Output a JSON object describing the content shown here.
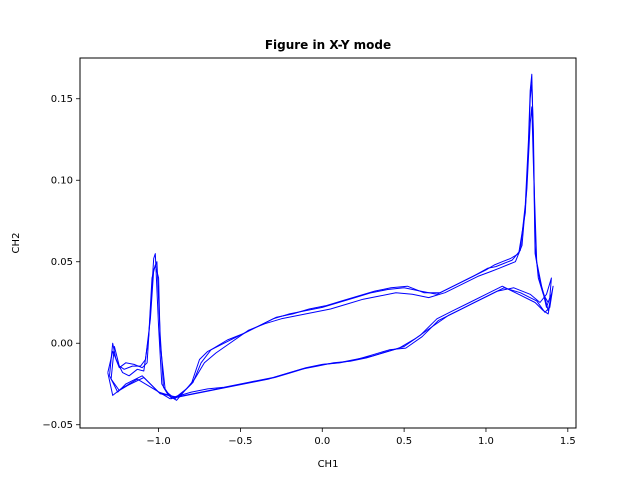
{
  "chart_data": {
    "type": "line",
    "title": "Figure in X-Y mode",
    "xlabel": "CH1",
    "ylabel": "CH2",
    "xlim": [
      -1.48,
      1.55
    ],
    "ylim": [
      -0.052,
      0.175
    ],
    "xticks": [
      -1.0,
      -0.5,
      0.0,
      0.5,
      1.0,
      1.5
    ],
    "xtick_labels": [
      "−1.0",
      "−0.5",
      "0.0",
      "0.5",
      "1.0",
      "1.5"
    ],
    "yticks": [
      -0.05,
      0.0,
      0.05,
      0.1,
      0.15
    ],
    "ytick_labels": [
      "−0.05",
      "0.00",
      "0.05",
      "0.10",
      "0.15"
    ],
    "grid": false,
    "color": "#0000ff",
    "series": [
      {
        "values": [
          [
            -1.3,
            -0.02
          ],
          [
            -1.28,
            0.0
          ],
          [
            -1.26,
            -0.01
          ],
          [
            -1.24,
            -0.015
          ],
          [
            -1.2,
            -0.012
          ],
          [
            -1.15,
            -0.013
          ],
          [
            -1.1,
            -0.015
          ],
          [
            -1.07,
            -0.012
          ],
          [
            -1.05,
            0.02
          ],
          [
            -1.03,
            0.052
          ],
          [
            -1.02,
            0.055
          ],
          [
            -1.0,
            0.01
          ],
          [
            -0.98,
            -0.025
          ],
          [
            -0.95,
            -0.03
          ],
          [
            -0.9,
            -0.034
          ],
          [
            -0.85,
            -0.03
          ],
          [
            -0.8,
            -0.025
          ],
          [
            -0.75,
            -0.01
          ],
          [
            -0.7,
            -0.005
          ],
          [
            -0.6,
            0.0
          ],
          [
            -0.5,
            0.005
          ],
          [
            -0.4,
            0.01
          ],
          [
            -0.3,
            0.015
          ],
          [
            -0.2,
            0.018
          ],
          [
            -0.1,
            0.02
          ],
          [
            0.0,
            0.022
          ],
          [
            0.1,
            0.025
          ],
          [
            0.2,
            0.028
          ],
          [
            0.3,
            0.031
          ],
          [
            0.4,
            0.033
          ],
          [
            0.5,
            0.034
          ],
          [
            0.6,
            0.032
          ],
          [
            0.7,
            0.03
          ],
          [
            0.8,
            0.035
          ],
          [
            0.9,
            0.04
          ],
          [
            1.0,
            0.045
          ],
          [
            1.05,
            0.048
          ],
          [
            1.1,
            0.05
          ],
          [
            1.15,
            0.052
          ],
          [
            1.2,
            0.055
          ],
          [
            1.24,
            0.08
          ],
          [
            1.26,
            0.12
          ],
          [
            1.27,
            0.15
          ],
          [
            1.28,
            0.16
          ],
          [
            1.29,
            0.13
          ],
          [
            1.3,
            0.06
          ],
          [
            1.32,
            0.04
          ],
          [
            1.35,
            0.03
          ],
          [
            1.38,
            0.025
          ],
          [
            1.4,
            0.03
          ],
          [
            1.38,
            0.018
          ],
          [
            1.35,
            0.02
          ],
          [
            1.3,
            0.025
          ],
          [
            1.2,
            0.03
          ],
          [
            1.1,
            0.035
          ],
          [
            1.0,
            0.03
          ],
          [
            0.9,
            0.025
          ],
          [
            0.8,
            0.02
          ],
          [
            0.7,
            0.015
          ],
          [
            0.6,
            0.005
          ],
          [
            0.5,
            -0.002
          ],
          [
            0.4,
            -0.005
          ],
          [
            0.3,
            -0.008
          ],
          [
            0.2,
            -0.01
          ],
          [
            0.1,
            -0.012
          ],
          [
            0.0,
            -0.013
          ],
          [
            -0.1,
            -0.015
          ],
          [
            -0.2,
            -0.018
          ],
          [
            -0.3,
            -0.021
          ],
          [
            -0.4,
            -0.023
          ],
          [
            -0.5,
            -0.025
          ],
          [
            -0.6,
            -0.027
          ],
          [
            -0.7,
            -0.028
          ],
          [
            -0.8,
            -0.03
          ],
          [
            -0.9,
            -0.033
          ],
          [
            -1.0,
            -0.03
          ],
          [
            -1.1,
            -0.02
          ],
          [
            -1.2,
            -0.025
          ],
          [
            -1.25,
            -0.03
          ],
          [
            -1.3,
            -0.02
          ]
        ]
      },
      {
        "values": [
          [
            -1.31,
            -0.018
          ],
          [
            -1.28,
            -0.005
          ],
          [
            -1.25,
            -0.012
          ],
          [
            -1.22,
            -0.018
          ],
          [
            -1.18,
            -0.02
          ],
          [
            -1.13,
            -0.016
          ],
          [
            -1.09,
            -0.017
          ],
          [
            -1.06,
            0.005
          ],
          [
            -1.04,
            0.04
          ],
          [
            -1.02,
            0.048
          ],
          [
            -1.0,
            0.04
          ],
          [
            -0.99,
            0.0
          ],
          [
            -0.96,
            -0.028
          ],
          [
            -0.92,
            -0.034
          ],
          [
            -0.88,
            -0.032
          ],
          [
            -0.83,
            -0.028
          ],
          [
            -0.78,
            -0.022
          ],
          [
            -0.72,
            -0.012
          ],
          [
            -0.65,
            -0.006
          ],
          [
            -0.55,
            0.001
          ],
          [
            -0.45,
            0.008
          ],
          [
            -0.35,
            0.012
          ],
          [
            -0.25,
            0.015
          ],
          [
            -0.15,
            0.017
          ],
          [
            -0.05,
            0.019
          ],
          [
            0.05,
            0.021
          ],
          [
            0.15,
            0.024
          ],
          [
            0.25,
            0.027
          ],
          [
            0.35,
            0.029
          ],
          [
            0.45,
            0.031
          ],
          [
            0.55,
            0.03
          ],
          [
            0.65,
            0.028
          ],
          [
            0.75,
            0.031
          ],
          [
            0.85,
            0.036
          ],
          [
            0.95,
            0.041
          ],
          [
            1.03,
            0.044
          ],
          [
            1.08,
            0.046
          ],
          [
            1.13,
            0.048
          ],
          [
            1.18,
            0.05
          ],
          [
            1.22,
            0.06
          ],
          [
            1.25,
            0.095
          ],
          [
            1.27,
            0.135
          ],
          [
            1.28,
            0.145
          ],
          [
            1.29,
            0.11
          ],
          [
            1.31,
            0.05
          ],
          [
            1.34,
            0.035
          ],
          [
            1.37,
            0.022
          ],
          [
            1.39,
            0.028
          ],
          [
            1.4,
            0.04
          ],
          [
            1.37,
            0.03
          ],
          [
            1.33,
            0.025
          ],
          [
            1.27,
            0.03
          ],
          [
            1.17,
            0.034
          ],
          [
            1.07,
            0.032
          ],
          [
            0.97,
            0.027
          ],
          [
            0.87,
            0.022
          ],
          [
            0.77,
            0.017
          ],
          [
            0.67,
            0.01
          ],
          [
            0.57,
            0.003
          ],
          [
            0.47,
            -0.003
          ],
          [
            0.37,
            -0.006
          ],
          [
            0.27,
            -0.009
          ],
          [
            0.17,
            -0.011
          ],
          [
            0.07,
            -0.012
          ],
          [
            -0.03,
            -0.014
          ],
          [
            -0.13,
            -0.016
          ],
          [
            -0.23,
            -0.019
          ],
          [
            -0.33,
            -0.022
          ],
          [
            -0.43,
            -0.024
          ],
          [
            -0.53,
            -0.026
          ],
          [
            -0.63,
            -0.028
          ],
          [
            -0.73,
            -0.03
          ],
          [
            -0.83,
            -0.032
          ],
          [
            -0.93,
            -0.034
          ],
          [
            -1.03,
            -0.028
          ],
          [
            -1.13,
            -0.022
          ],
          [
            -1.23,
            -0.028
          ],
          [
            -1.28,
            -0.032
          ],
          [
            -1.31,
            -0.018
          ]
        ]
      },
      {
        "values": [
          [
            -1.29,
            -0.022
          ],
          [
            -1.27,
            -0.002
          ],
          [
            -1.24,
            -0.014
          ],
          [
            -1.21,
            -0.016
          ],
          [
            -1.16,
            -0.014
          ],
          [
            -1.11,
            -0.014
          ],
          [
            -1.08,
            -0.01
          ],
          [
            -1.05,
            0.015
          ],
          [
            -1.03,
            0.045
          ],
          [
            -1.01,
            0.05
          ],
          [
            -0.99,
            0.005
          ],
          [
            -0.97,
            -0.027
          ],
          [
            -0.94,
            -0.032
          ],
          [
            -0.89,
            -0.035
          ],
          [
            -0.84,
            -0.029
          ],
          [
            -0.79,
            -0.024
          ],
          [
            -0.74,
            -0.012
          ],
          [
            -0.68,
            -0.004
          ],
          [
            -0.58,
            0.002
          ],
          [
            -0.48,
            0.006
          ],
          [
            -0.38,
            0.011
          ],
          [
            -0.28,
            0.016
          ],
          [
            -0.18,
            0.018
          ],
          [
            -0.08,
            0.021
          ],
          [
            0.02,
            0.023
          ],
          [
            0.12,
            0.026
          ],
          [
            0.22,
            0.029
          ],
          [
            0.32,
            0.032
          ],
          [
            0.42,
            0.034
          ],
          [
            0.52,
            0.035
          ],
          [
            0.62,
            0.031
          ],
          [
            0.72,
            0.031
          ],
          [
            0.82,
            0.036
          ],
          [
            0.92,
            0.041
          ],
          [
            1.01,
            0.046
          ],
          [
            1.06,
            0.047
          ],
          [
            1.11,
            0.049
          ],
          [
            1.16,
            0.051
          ],
          [
            1.21,
            0.057
          ],
          [
            1.24,
            0.085
          ],
          [
            1.26,
            0.125
          ],
          [
            1.27,
            0.155
          ],
          [
            1.28,
            0.165
          ],
          [
            1.29,
            0.12
          ],
          [
            1.3,
            0.055
          ],
          [
            1.33,
            0.038
          ],
          [
            1.36,
            0.028
          ],
          [
            1.38,
            0.02
          ],
          [
            1.41,
            0.035
          ],
          [
            1.39,
            0.022
          ],
          [
            1.36,
            0.019
          ],
          [
            1.31,
            0.026
          ],
          [
            1.21,
            0.031
          ],
          [
            1.11,
            0.034
          ],
          [
            1.01,
            0.029
          ],
          [
            0.91,
            0.024
          ],
          [
            0.81,
            0.019
          ],
          [
            0.71,
            0.014
          ],
          [
            0.61,
            0.004
          ],
          [
            0.51,
            -0.003
          ],
          [
            0.41,
            -0.004
          ],
          [
            0.31,
            -0.007
          ],
          [
            0.21,
            -0.01
          ],
          [
            0.11,
            -0.012
          ],
          [
            0.01,
            -0.013
          ],
          [
            -0.09,
            -0.015
          ],
          [
            -0.19,
            -0.018
          ],
          [
            -0.29,
            -0.021
          ],
          [
            -0.39,
            -0.023
          ],
          [
            -0.49,
            -0.025
          ],
          [
            -0.59,
            -0.027
          ],
          [
            -0.69,
            -0.029
          ],
          [
            -0.79,
            -0.031
          ],
          [
            -0.89,
            -0.033
          ],
          [
            -0.99,
            -0.031
          ],
          [
            -1.09,
            -0.021
          ],
          [
            -1.19,
            -0.026
          ],
          [
            -1.24,
            -0.029
          ],
          [
            -1.29,
            -0.022
          ]
        ]
      }
    ]
  }
}
